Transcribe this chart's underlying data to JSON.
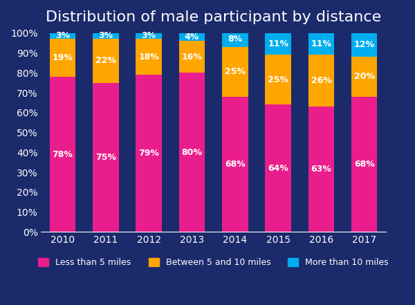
{
  "title": "Distribution of male participant by distance",
  "years": [
    "2010",
    "2011",
    "2012",
    "2013",
    "2014",
    "2015",
    "2016",
    "2017"
  ],
  "less_than_5": [
    78,
    75,
    79,
    80,
    68,
    64,
    63,
    68
  ],
  "between_5_10": [
    19,
    22,
    18,
    16,
    25,
    25,
    26,
    20
  ],
  "more_than_10": [
    3,
    3,
    3,
    4,
    8,
    11,
    11,
    12
  ],
  "color_less_than_5": "#E91E8C",
  "color_between_5_10": "#FFA500",
  "color_more_than_10": "#00AEEF",
  "background_color": "#1B2A6B",
  "text_color": "#FFFFFF",
  "legend_labels": [
    "Less than 5 miles",
    "Between 5 and 10 miles",
    "More than 10 miles"
  ],
  "title_fontsize": 16,
  "tick_fontsize": 10,
  "label_fontsize": 10
}
